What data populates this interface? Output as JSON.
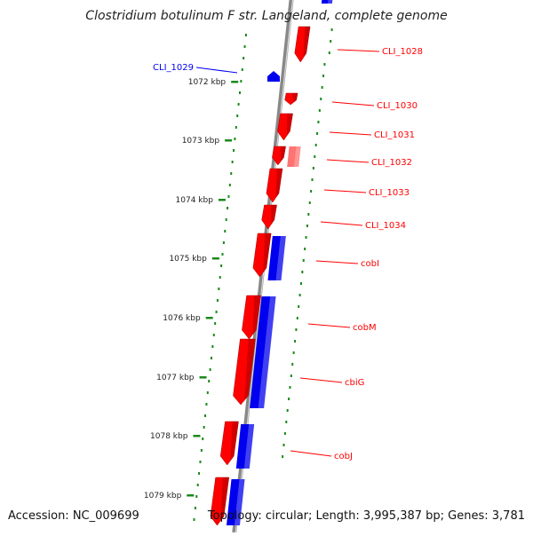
{
  "title": "Clostridium botulinum F str. Langeland, complete genome",
  "footer": {
    "accession": "Accession: NC_009699",
    "summary": "Topology: circular; Length: 3,995,387 bp; Genes: 3,781"
  },
  "ruler": [
    {
      "label": "1072 kbp"
    },
    {
      "label": "1073 kbp"
    },
    {
      "label": "1074 kbp"
    },
    {
      "label": "1075 kbp"
    },
    {
      "label": "1076 kbp"
    },
    {
      "label": "1077 kbp"
    },
    {
      "label": "1078 kbp"
    },
    {
      "label": "1079 kbp"
    }
  ],
  "genes": [
    {
      "label": "CLI_1028",
      "strand": "forward",
      "color": "#ff0000"
    },
    {
      "label": "CLI_1029",
      "strand": "reverse",
      "color": "#0000ee"
    },
    {
      "label": "CLI_1030",
      "strand": "forward",
      "color": "#ff0000"
    },
    {
      "label": "CLI_1031",
      "strand": "forward",
      "color": "#ff0000"
    },
    {
      "label": "CLI_1032",
      "strand": "forward",
      "color": "#ff0000"
    },
    {
      "label": "CLI_1033",
      "strand": "forward",
      "color": "#ff0000"
    },
    {
      "label": "CLI_1034",
      "strand": "forward",
      "color": "#ff0000"
    },
    {
      "label": "cobI",
      "strand": "forward",
      "color": "#ff0000"
    },
    {
      "label": "cobM",
      "strand": "forward",
      "color": "#ff0000"
    },
    {
      "label": "cbiG",
      "strand": "forward",
      "color": "#ff0000"
    },
    {
      "label": "cobJ",
      "strand": "forward",
      "color": "#ff0000"
    }
  ],
  "colors": {
    "forward": "#ff0000",
    "reverse": "#0000ee",
    "ruler_ticks": "#1a8a1a",
    "backbone": "#888888"
  }
}
